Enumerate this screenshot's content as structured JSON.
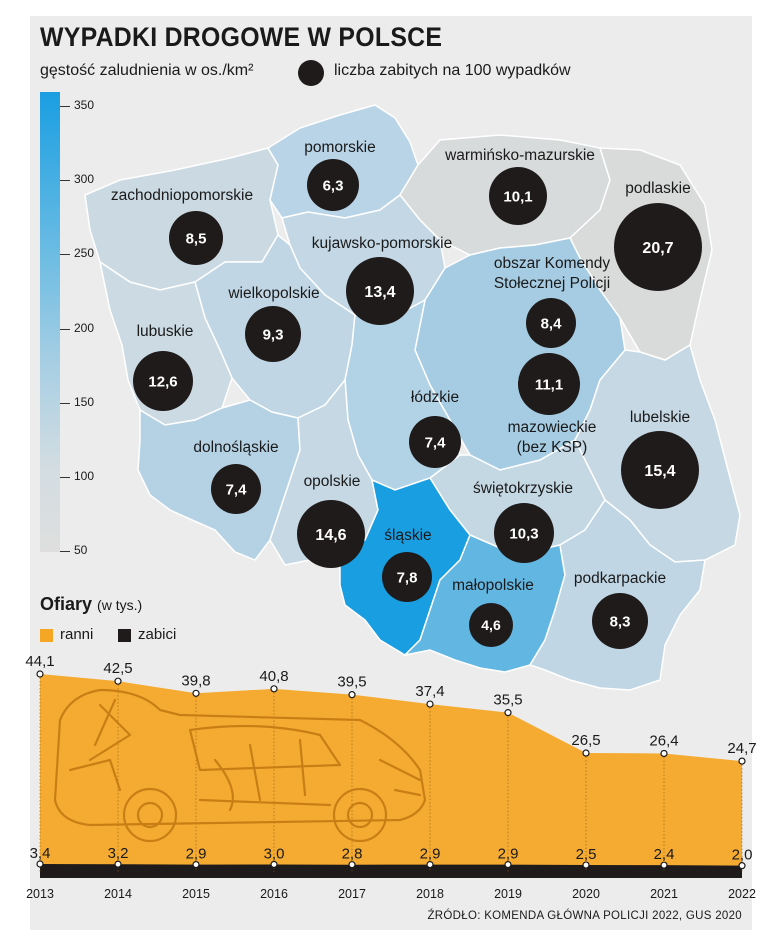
{
  "title": "WYPADKI DROGOWE W POLSCE",
  "legend": {
    "density_label": "gęstość zaludnienia w os./km²",
    "bubble_label": "liczba zabitych na 100 wypadków",
    "scale_ticks": [
      "350",
      "300",
      "250",
      "200",
      "150",
      "100",
      "50"
    ]
  },
  "regions": [
    {
      "name": "pomorskie",
      "value": "6,3",
      "density": 128
    },
    {
      "name": "warmińsko-mazurskie",
      "value": "10,1",
      "density": 59
    },
    {
      "name": "zachodniopomorskie",
      "value": "8,5",
      "density": 74
    },
    {
      "name": "podlaskie",
      "value": "20,7",
      "density": 58
    },
    {
      "name": "kujawsko-pomorskie",
      "value": "13,4",
      "density": 115
    },
    {
      "name": "obszar Komendy Stołecznej Policji",
      "value": "8,4"
    },
    {
      "name": "wielkopolskie",
      "value": "9,3",
      "density": 117
    },
    {
      "name": "lubuskie",
      "value": "12,6",
      "density": 72
    },
    {
      "name": "mazowieckie (bez KSP)",
      "value": "11,1",
      "density": 153
    },
    {
      "name": "łódzkie",
      "value": "7,4",
      "density": 134
    },
    {
      "name": "lubelskie",
      "value": "15,4",
      "density": 83
    },
    {
      "name": "dolnośląskie",
      "value": "7,4",
      "density": 145
    },
    {
      "name": "opolskie",
      "value": "14,6",
      "density": 104
    },
    {
      "name": "świętokrzyskie",
      "value": "10,3",
      "density": 104
    },
    {
      "name": "śląskie",
      "value": "7,8",
      "density": 366
    },
    {
      "name": "małopolskie",
      "value": "4,6",
      "density": 224
    },
    {
      "name": "podkarpackie",
      "value": "8,3",
      "density": 118
    }
  ],
  "colors": {
    "water": "#1a9ee2",
    "bubble": "#1f1b1b",
    "ranni": "#f5a623",
    "zabici": "#1f1b1b",
    "background": "#ececec"
  },
  "victims": {
    "title": "Ofiary",
    "unit": "(w tys.)",
    "legend_injured": "ranni",
    "legend_killed": "zabici"
  },
  "chart_data": {
    "type": "area",
    "x": [
      "2013",
      "2014",
      "2015",
      "2016",
      "2017",
      "2018",
      "2019",
      "2020",
      "2021",
      "2022"
    ],
    "series": [
      {
        "name": "ranni",
        "values": [
          44.1,
          42.5,
          39.8,
          40.8,
          39.5,
          37.4,
          35.5,
          26.5,
          26.4,
          24.7
        ],
        "labels": [
          "44,1",
          "42,5",
          "39,8",
          "40,8",
          "39,5",
          "37,4",
          "35,5",
          "26,5",
          "26,4",
          "24,7"
        ]
      },
      {
        "name": "zabici",
        "values": [
          3.4,
          3.2,
          2.9,
          3.0,
          2.8,
          2.9,
          2.9,
          2.5,
          2.4,
          2.0
        ],
        "labels": [
          "3,4",
          "3,2",
          "2,9",
          "3,0",
          "2,8",
          "2,9",
          "2,9",
          "2,5",
          "2,4",
          "2,0"
        ]
      }
    ]
  },
  "source": "ŹRÓDŁO: KOMENDA GŁÓWNA POLICJI 2022, GUS 2020"
}
